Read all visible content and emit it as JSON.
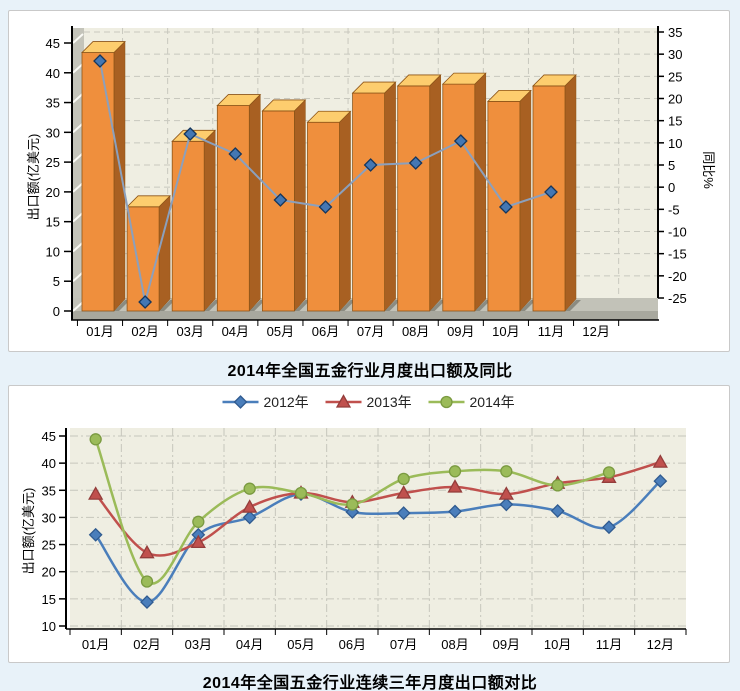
{
  "page": {
    "background": "#e8f2f9",
    "panel_background": "#ffffff",
    "panel_border": "#c9c9c9",
    "title_color": "#000000"
  },
  "chart_data": [
    {
      "type": "bar",
      "title": "2014年全国五金行业月度出口额及同比",
      "categories": [
        "01月",
        "02月",
        "03月",
        "04月",
        "05月",
        "06月",
        "07月",
        "08月",
        "09月",
        "10月",
        "11月",
        "12月"
      ],
      "ylabel_left": "出口额(亿美元)",
      "ylabel_right": "同比%",
      "ylim_left": [
        0,
        45
      ],
      "ytick_step_left": 5,
      "ylim_right": [
        -25,
        35
      ],
      "ytick_step_right": 5,
      "grid": true,
      "legend_position": "none",
      "plot_bg": "#efeee2",
      "grid_color": "#c8c8be",
      "wall_color": "#c4c4ba",
      "floor_top_color": "#c2c2b8",
      "floor_front_color": "#a8a89e",
      "series": [
        {
          "name": "出口额(亿美元)",
          "type": "bar",
          "axis": "left",
          "color_front": "#ef8f3d",
          "color_top": "#fdcd6e",
          "color_side": "#a86022",
          "color_edge": "#8d5417",
          "values": [
            44.4,
            18.5,
            29.5,
            35.5,
            34.6,
            32.7,
            37.6,
            38.8,
            39.1,
            36.2,
            38.8,
            null
          ]
        },
        {
          "name": "同比%",
          "type": "line",
          "axis": "right",
          "color": "#8ba0bd",
          "marker": "diamond",
          "marker_color": "#4477b3",
          "marker_edge": "#16365c",
          "values": [
            28.5,
            -26,
            12,
            7.5,
            -3,
            -4.5,
            5,
            5.5,
            10.5,
            -4.5,
            -1,
            null
          ]
        }
      ]
    },
    {
      "type": "line",
      "title": "2014年全国五金行业连续三年月度出口额对比",
      "categories": [
        "01月",
        "02月",
        "03月",
        "04月",
        "05月",
        "06月",
        "07月",
        "08月",
        "09月",
        "10月",
        "11月",
        "12月"
      ],
      "ylabel": "出口额(亿美元)",
      "ylim": [
        10,
        45
      ],
      "ytick_step": 5,
      "grid": true,
      "legend_position": "top",
      "plot_bg": "#efeee2",
      "grid_color": "#c6c6bc",
      "series": [
        {
          "name": "2012年",
          "marker": "diamond",
          "color": "#4a7ebb",
          "marker_edge": "#2f5a8f",
          "values": [
            26.8,
            14.4,
            26.8,
            30.0,
            34.3,
            31.0,
            30.8,
            31.1,
            32.4,
            31.2,
            28.2,
            36.7
          ]
        },
        {
          "name": "2013年",
          "marker": "triangle",
          "color": "#c0504d",
          "marker_edge": "#943d3b",
          "values": [
            34.3,
            23.5,
            25.4,
            31.9,
            34.5,
            32.8,
            34.5,
            35.6,
            34.3,
            36.3,
            37.4,
            40.2
          ]
        },
        {
          "name": "2014年",
          "marker": "circle",
          "color": "#9bbb59",
          "marker_edge": "#7a9a40",
          "values": [
            44.4,
            18.2,
            29.2,
            35.3,
            34.5,
            32.4,
            37.1,
            38.5,
            38.5,
            35.9,
            38.3,
            null
          ]
        }
      ]
    }
  ]
}
